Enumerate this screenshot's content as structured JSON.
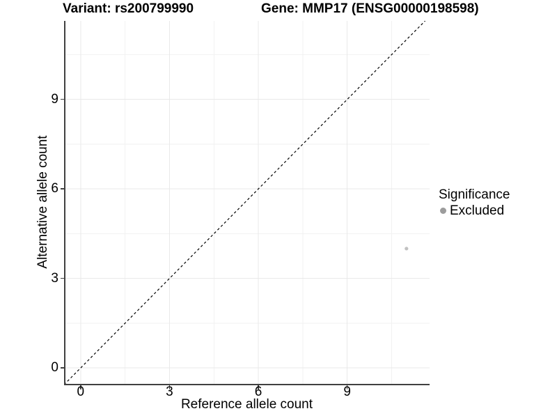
{
  "figure": {
    "title_left": "Variant: rs200799990",
    "title_right": "Gene: MMP17 (ENSG00000198598)"
  },
  "axes": {
    "x": {
      "label": "Reference allele count",
      "tick_labels": [
        "0",
        "3",
        "6",
        "9"
      ]
    },
    "y": {
      "label": "Alternative allele count",
      "tick_labels": [
        "0",
        "3",
        "6",
        "9"
      ]
    }
  },
  "legend": {
    "title": "Significance",
    "items": [
      {
        "label": "Excluded",
        "swatch_color": "#9c9c9c"
      }
    ]
  },
  "colors": {
    "background": "#ffffff",
    "text": "#000000",
    "axis_line": "#404040",
    "grid_major": "#e9e9e9",
    "grid_minor": "#f2f2f2",
    "reference_line": "#000000",
    "point": "#c1c1c1"
  },
  "chart_data": {
    "type": "scatter",
    "title_left": "Variant: rs200799990",
    "title_right": "Gene: MMP17 (ENSG00000198598)",
    "xlabel": "Reference allele count",
    "ylabel": "Alternative allele count",
    "xlim": [
      -0.56,
      11.78
    ],
    "ylim": [
      -0.58,
      11.63
    ],
    "xticks": [
      0,
      3,
      6,
      9
    ],
    "yticks": [
      0,
      3,
      6,
      9
    ],
    "minor_xticks": [
      1.5,
      4.5,
      7.5,
      10.5
    ],
    "minor_yticks": [
      1.5,
      4.5,
      7.5,
      10.5
    ],
    "grid": "major and minor gridlines on white panel",
    "legend_position": "right",
    "series": [
      {
        "name": "Excluded",
        "color": "#c1c1c1",
        "points": [
          {
            "x": 11,
            "y": 4
          }
        ]
      }
    ],
    "reference_line": {
      "kind": "identity y=x",
      "style": "dashed",
      "color": "#000000"
    }
  }
}
